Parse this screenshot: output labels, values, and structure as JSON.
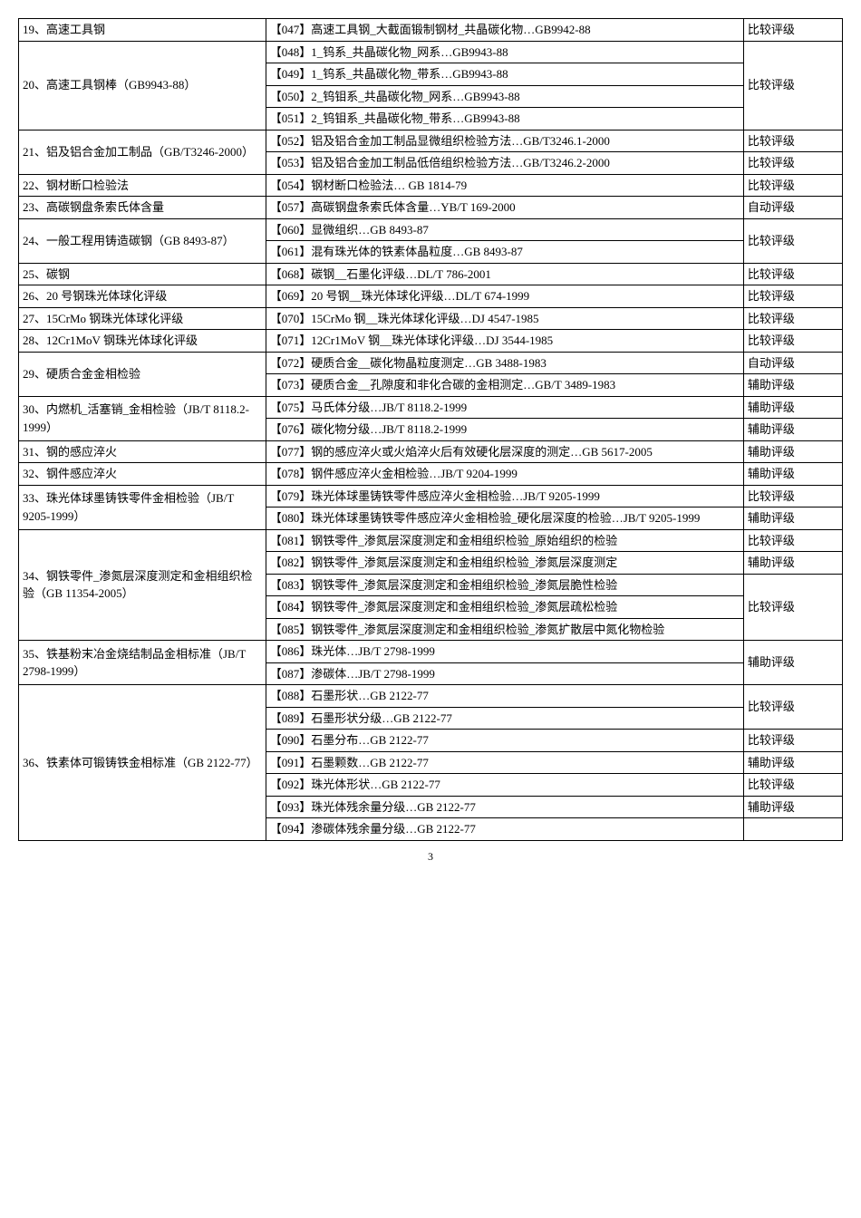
{
  "rows": [
    {
      "c1": "19、高速工具钢",
      "c2": "【047】高速工具钢_大截面锻制钢材_共晶碳化物…GB9942-88",
      "c3": "比较评级"
    },
    {
      "c1span": 4,
      "c1": "20、高速工具钢棒（GB9943-88）",
      "c2": "【048】1_钨系_共晶碳化物_网系…GB9943-88",
      "c3span": 4,
      "c3": "比较评级"
    },
    {
      "c2": "【049】1_钨系_共晶碳化物_带系…GB9943-88"
    },
    {
      "c2": "【050】2_钨钼系_共晶碳化物_网系…GB9943-88"
    },
    {
      "c2": "【051】2_钨钼系_共晶碳化物_带系…GB9943-88"
    },
    {
      "c1span": 2,
      "c1": "21、铝及铝合金加工制品（GB/T3246-2000）",
      "c2": "【052】铝及铝合金加工制品显微组织检验方法…GB/T3246.1-2000",
      "c3": "比较评级"
    },
    {
      "c2": "【053】铝及铝合金加工制品低倍组织检验方法…GB/T3246.2-2000",
      "c3": "比较评级"
    },
    {
      "c1": "22、钢材断口检验法",
      "c2": "【054】钢材断口检验法… GB 1814-79",
      "c3": "比较评级"
    },
    {
      "c1": "23、高碳钢盘条索氏体含量",
      "c2": "【057】高碳钢盘条索氏体含量…YB/T 169-2000",
      "c3": "自动评级"
    },
    {
      "c1span": 2,
      "c1": "24、一般工程用铸造碳钢（GB 8493-87）",
      "c2": "【060】显微组织…GB 8493-87",
      "c3span": 2,
      "c3": "比较评级"
    },
    {
      "c2": "【061】混有珠光体的铁素体晶粒度…GB 8493-87"
    },
    {
      "c1": "25、碳钢",
      "c2": "【068】碳钢__石墨化评级…DL/T 786-2001",
      "c3": "比较评级"
    },
    {
      "c1": "26、20 号钢珠光体球化评级",
      "c2": "【069】20 号钢__珠光体球化评级…DL/T 674-1999",
      "c3": "比较评级"
    },
    {
      "c1": "27、15CrMo 钢珠光体球化评级",
      "c2": "【070】15CrMo 钢__珠光体球化评级…DJ 4547-1985",
      "c3": "比较评级"
    },
    {
      "c1": "28、12Cr1MoV 钢珠光体球化评级",
      "c2": "【071】12Cr1MoV 钢__珠光体球化评级…DJ 3544-1985",
      "c3": "比较评级"
    },
    {
      "c1span": 2,
      "c1": "29、硬质合金金相检验",
      "c2": "【072】硬质合金__碳化物晶粒度测定…GB 3488-1983",
      "c3": "自动评级"
    },
    {
      "c2": "【073】硬质合金__孔隙度和非化合碳的金相测定…GB/T 3489-1983",
      "c3": "辅助评级"
    },
    {
      "c1": "30、内燃机_活塞销_金相检验（JB/T 8118.2-1999）",
      "c1span": 2,
      "c2": "【075】马氏体分级…JB/T 8118.2-1999",
      "c3": "辅助评级"
    },
    {
      "c2": "【076】碳化物分级…JB/T 8118.2-1999",
      "c3": "辅助评级"
    },
    {
      "c1": "31、钢的感应淬火",
      "c2": "【077】钢的感应淬火或火焰淬火后有效硬化层深度的测定…GB 5617-2005",
      "c3": "辅助评级"
    },
    {
      "c1": "32、钢件感应淬火",
      "c2": "【078】钢件感应淬火金相检验…JB/T 9204-1999",
      "c3": "辅助评级"
    },
    {
      "c1span": 2,
      "c1": "33、珠光体球墨铸铁零件金相检验（JB/T 9205-1999）",
      "c2": "【079】珠光体球墨铸铁零件感应淬火金相检验…JB/T 9205-1999",
      "c3": "比较评级"
    },
    {
      "c2": "【080】珠光体球墨铸铁零件感应淬火金相检验_硬化层深度的检验…JB/T 9205-1999",
      "c3": "辅助评级"
    },
    {
      "c1span": 5,
      "c1": "34、钢铁零件_渗氮层深度测定和金相组织检验（GB 11354-2005）",
      "c2": "【081】钢铁零件_渗氮层深度测定和金相组织检验_原始组织的检验",
      "c3": "比较评级"
    },
    {
      "c2": "【082】钢铁零件_渗氮层深度测定和金相组织检验_渗氮层深度测定",
      "c3": "辅助评级"
    },
    {
      "c2": "【083】钢铁零件_渗氮层深度测定和金相组织检验_渗氮层脆性检验",
      "c3span": 3,
      "c3": "比较评级"
    },
    {
      "c2": "【084】钢铁零件_渗氮层深度测定和金相组织检验_渗氮层疏松检验"
    },
    {
      "c2": "【085】钢铁零件_渗氮层深度测定和金相组织检验_渗氮扩散层中氮化物检验"
    },
    {
      "c1span": 2,
      "c1": "35、铁基粉末冶金烧结制品金相标准（JB/T 2798-1999）",
      "c2": "【086】珠光体…JB/T 2798-1999",
      "c3span": 2,
      "c3": "辅助评级"
    },
    {
      "c2": "【087】渗碳体…JB/T 2798-1999"
    },
    {
      "c1span": 7,
      "c1": "36、铁素体可锻铸铁金相标准（GB 2122-77）",
      "c2": "【088】石墨形状…GB 2122-77",
      "c3span": 2,
      "c3": "比较评级"
    },
    {
      "c2": "【089】石墨形状分级…GB 2122-77"
    },
    {
      "c2": "【090】石墨分布…GB 2122-77",
      "c3": "比较评级"
    },
    {
      "c2": "【091】石墨颗数…GB 2122-77",
      "c3": "辅助评级"
    },
    {
      "c2": "【092】珠光体形状…GB 2122-77",
      "c3": "比较评级"
    },
    {
      "c2": "【093】珠光体残余量分级…GB 2122-77",
      "c3": "辅助评级"
    },
    {
      "c2": "【094】渗碳体残余量分级…GB 2122-77",
      "c3": ""
    }
  ],
  "pageNumber": "3"
}
